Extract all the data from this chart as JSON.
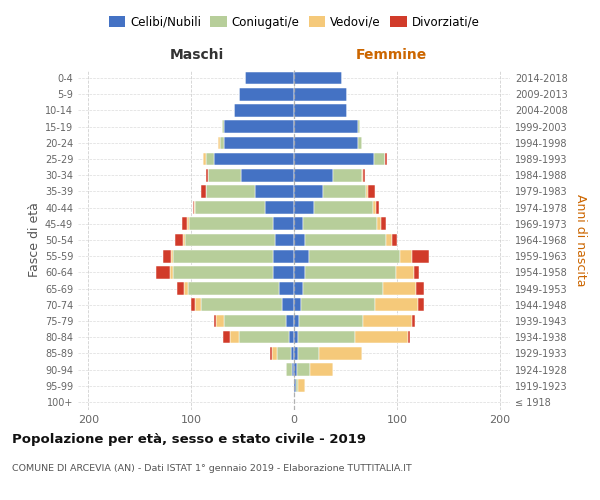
{
  "age_groups": [
    "100+",
    "95-99",
    "90-94",
    "85-89",
    "80-84",
    "75-79",
    "70-74",
    "65-69",
    "60-64",
    "55-59",
    "50-54",
    "45-49",
    "40-44",
    "35-39",
    "30-34",
    "25-29",
    "20-24",
    "15-19",
    "10-14",
    "5-9",
    "0-4"
  ],
  "birth_years": [
    "≤ 1918",
    "1919-1923",
    "1924-1928",
    "1929-1933",
    "1934-1938",
    "1939-1943",
    "1944-1948",
    "1949-1953",
    "1954-1958",
    "1959-1963",
    "1964-1968",
    "1969-1973",
    "1974-1978",
    "1979-1983",
    "1984-1988",
    "1989-1993",
    "1994-1998",
    "1999-2003",
    "2004-2008",
    "2009-2013",
    "2014-2018"
  ],
  "male_celibi": [
    0,
    0,
    2,
    3,
    5,
    8,
    12,
    15,
    20,
    20,
    18,
    20,
    28,
    38,
    52,
    78,
    68,
    68,
    58,
    53,
    48
  ],
  "male_coniugati": [
    0,
    0,
    6,
    14,
    48,
    60,
    78,
    88,
    98,
    98,
    88,
    82,
    68,
    48,
    32,
    8,
    4,
    2,
    0,
    0,
    0
  ],
  "male_vedovi": [
    0,
    0,
    0,
    4,
    9,
    8,
    6,
    4,
    3,
    2,
    2,
    2,
    1,
    0,
    0,
    2,
    2,
    0,
    0,
    0,
    0
  ],
  "male_divorziati": [
    0,
    0,
    0,
    2,
    7,
    2,
    4,
    7,
    13,
    7,
    8,
    5,
    1,
    4,
    2,
    0,
    0,
    0,
    0,
    0,
    0
  ],
  "female_nubili": [
    0,
    2,
    3,
    4,
    4,
    5,
    7,
    9,
    11,
    15,
    11,
    9,
    19,
    28,
    38,
    78,
    62,
    62,
    52,
    52,
    47
  ],
  "female_coniugate": [
    0,
    2,
    13,
    20,
    55,
    62,
    72,
    78,
    88,
    88,
    78,
    72,
    58,
    42,
    28,
    10,
    4,
    2,
    0,
    0,
    0
  ],
  "female_vedove": [
    0,
    7,
    22,
    42,
    52,
    48,
    42,
    32,
    18,
    12,
    6,
    4,
    3,
    2,
    1,
    0,
    0,
    0,
    0,
    0,
    0
  ],
  "female_divorziate": [
    0,
    0,
    0,
    0,
    2,
    3,
    5,
    7,
    5,
    16,
    5,
    4,
    3,
    7,
    2,
    2,
    0,
    0,
    0,
    0,
    0
  ],
  "color_celibi": "#4472c4",
  "color_coniugati": "#b7ce9a",
  "color_vedovi": "#f5c97a",
  "color_divorziati": "#d13b2a",
  "title": "Popolazione per età, sesso e stato civile - 2019",
  "subtitle": "COMUNE DI ARCEVIA (AN) - Dati ISTAT 1° gennaio 2019 - Elaborazione TUTTITALIA.IT",
  "xlim": 210,
  "bg_color": "#ffffff",
  "grid_color": "#cccccc"
}
